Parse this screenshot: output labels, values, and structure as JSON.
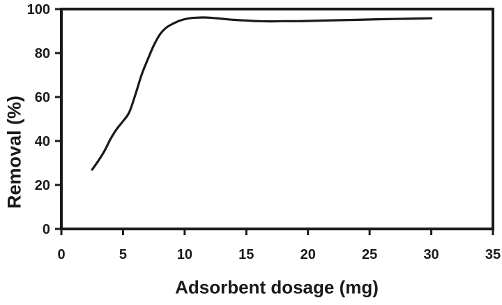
{
  "figure": {
    "background": "#ffffff",
    "ink_color": "#1a1a1a"
  },
  "chart_data": {
    "type": "line",
    "title": "",
    "xlabel": "Adsorbent dosage (mg)",
    "ylabel": "Removal (%)",
    "xlim": [
      0,
      35
    ],
    "ylim": [
      0,
      100
    ],
    "xticks": [
      0,
      5,
      10,
      15,
      20,
      25,
      30,
      35
    ],
    "yticks": [
      0,
      20,
      40,
      60,
      80,
      100
    ],
    "grid": false,
    "legend_position": "none",
    "frame": "full-box",
    "series": [
      {
        "name": "removal-vs-dosage",
        "color": "#1a1a1a",
        "line_width": 3.2,
        "markers": false,
        "x": [
          2.5,
          3.0,
          3.5,
          4.0,
          4.5,
          5.0,
          5.5,
          6.0,
          6.5,
          7.0,
          7.5,
          8.0,
          8.5,
          9.0,
          9.5,
          10.0,
          10.5,
          11.0,
          11.5,
          12.0,
          13.0,
          14.0,
          15.0,
          16.0,
          17.0,
          18.0,
          19.0,
          20.0,
          22.0,
          24.0,
          26.0,
          28.0,
          30.0
        ],
        "y": [
          27,
          31,
          35.5,
          41,
          45.5,
          49,
          53,
          61,
          70,
          77,
          83.5,
          88.5,
          91.5,
          93.2,
          94.5,
          95.4,
          95.9,
          96.1,
          96.2,
          96.1,
          95.6,
          95.1,
          94.8,
          94.5,
          94.4,
          94.5,
          94.5,
          94.6,
          94.9,
          95.1,
          95.4,
          95.6,
          95.8
        ]
      }
    ]
  }
}
